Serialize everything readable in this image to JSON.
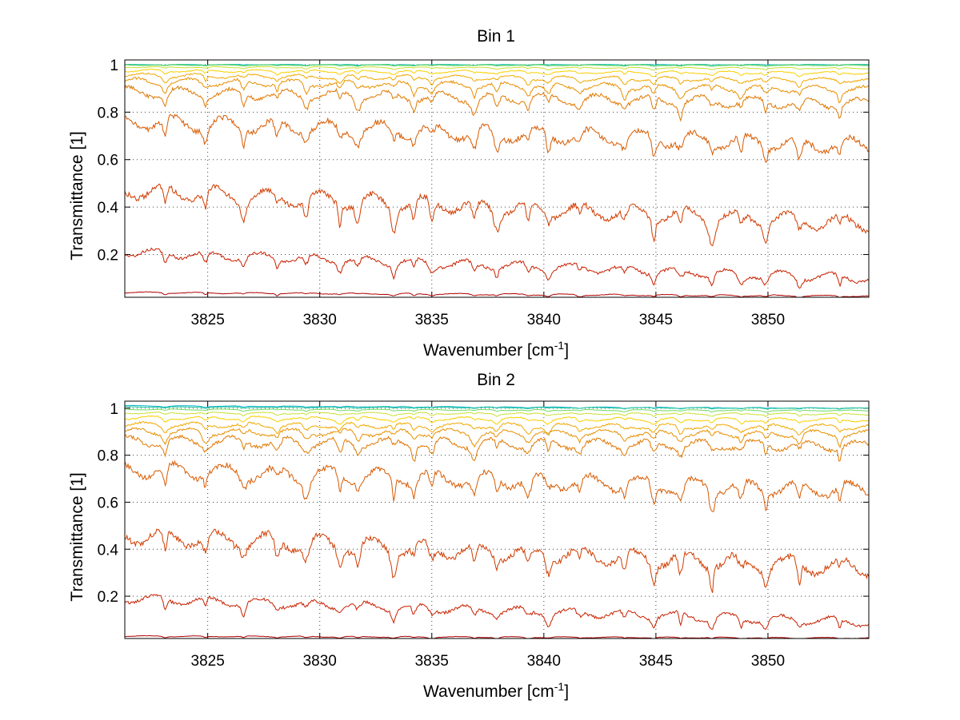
{
  "chart_data": [
    {
      "type": "line",
      "title": "Bin 1",
      "xlabel": "Wavenumber [cm",
      "xlabel_sup": "-1",
      "xlabel_end": "]",
      "ylabel": "Transmittance [1]",
      "xlim": [
        3821.3,
        3854.5
      ],
      "ylim": [
        0.02,
        1.02
      ],
      "xticks": [
        3825,
        3830,
        3835,
        3840,
        3845,
        3850
      ],
      "yticks": [
        0.2,
        0.4,
        0.6,
        0.8,
        1
      ],
      "ytick_labels": [
        "0.2",
        "0.4",
        "0.6",
        "0.8",
        "1"
      ],
      "grid": true,
      "line_features": [
        3823.1,
        3824.9,
        3826.6,
        3828.1,
        3829.4,
        3830.9,
        3831.7,
        3833.3,
        3834.2,
        3835.0,
        3836.9,
        3837.9,
        3839.3,
        3840.2,
        3841.6,
        3843.6,
        3844.9,
        3846.1,
        3847.5,
        3848.8,
        3849.9,
        3851.4,
        3853.2
      ],
      "series": [
        {
          "color": "#00b0c8",
          "start": 1.0,
          "end": 1.0,
          "depth": 0.003
        },
        {
          "color": "#28c8a0",
          "start": 1.0,
          "end": 1.0,
          "depth": 0.003
        },
        {
          "color": "#70d860",
          "start": 0.998,
          "end": 0.997,
          "depth": 0.004
        },
        {
          "color": "#c8e030",
          "start": 0.99,
          "end": 0.985,
          "depth": 0.007
        },
        {
          "color": "#f8d000",
          "start": 0.975,
          "end": 0.965,
          "depth": 0.015
        },
        {
          "color": "#f0a800",
          "start": 0.955,
          "end": 0.935,
          "depth": 0.025
        },
        {
          "color": "#e89000",
          "start": 0.93,
          "end": 0.895,
          "depth": 0.04
        },
        {
          "color": "#e07800",
          "start": 0.885,
          "end": 0.835,
          "depth": 0.06
        },
        {
          "color": "#d85a00",
          "start": 0.76,
          "end": 0.66,
          "depth": 0.09
        },
        {
          "color": "#d03c00",
          "start": 0.47,
          "end": 0.33,
          "depth": 0.09
        },
        {
          "color": "#c82000",
          "start": 0.21,
          "end": 0.1,
          "depth": 0.05
        },
        {
          "color": "#b00000",
          "start": 0.04,
          "end": 0.025,
          "depth": 0.008
        }
      ]
    },
    {
      "type": "line",
      "title": "Bin 2",
      "xlabel": "Wavenumber [cm",
      "xlabel_sup": "-1",
      "xlabel_end": "]",
      "ylabel": "Transmittance [1]",
      "xlim": [
        3821.3,
        3854.5
      ],
      "ylim": [
        0.02,
        1.03
      ],
      "xticks": [
        3825,
        3830,
        3835,
        3840,
        3845,
        3850
      ],
      "yticks": [
        0.2,
        0.4,
        0.6,
        0.8,
        1
      ],
      "ytick_labels": [
        "0.2",
        "0.4",
        "0.6",
        "0.8",
        "1"
      ],
      "grid": true,
      "line_features": [
        3823.1,
        3824.9,
        3826.6,
        3828.1,
        3829.4,
        3830.9,
        3831.7,
        3833.3,
        3834.2,
        3835.0,
        3836.9,
        3837.9,
        3839.3,
        3840.2,
        3841.6,
        3843.6,
        3844.9,
        3846.1,
        3847.5,
        3848.8,
        3849.9,
        3851.4,
        3853.2
      ],
      "series": [
        {
          "color": "#00b0c8",
          "start": 1.01,
          "end": 1.0,
          "depth": 0.004
        },
        {
          "color": "#28c8a0",
          "start": 1.005,
          "end": 1.0,
          "depth": 0.004
        },
        {
          "color": "#70d860",
          "start": 0.995,
          "end": 0.99,
          "depth": 0.006
        },
        {
          "color": "#c8e030",
          "start": 0.98,
          "end": 0.975,
          "depth": 0.01
        },
        {
          "color": "#f8d000",
          "start": 0.96,
          "end": 0.95,
          "depth": 0.02
        },
        {
          "color": "#f0a800",
          "start": 0.93,
          "end": 0.92,
          "depth": 0.03
        },
        {
          "color": "#e89000",
          "start": 0.9,
          "end": 0.89,
          "depth": 0.04
        },
        {
          "color": "#e07800",
          "start": 0.86,
          "end": 0.84,
          "depth": 0.06
        },
        {
          "color": "#d85a00",
          "start": 0.74,
          "end": 0.65,
          "depth": 0.09
        },
        {
          "color": "#d03c00",
          "start": 0.46,
          "end": 0.32,
          "depth": 0.1
        },
        {
          "color": "#c82000",
          "start": 0.19,
          "end": 0.09,
          "depth": 0.05
        },
        {
          "color": "#b00000",
          "start": 0.03,
          "end": 0.022,
          "depth": 0.006
        }
      ]
    }
  ]
}
